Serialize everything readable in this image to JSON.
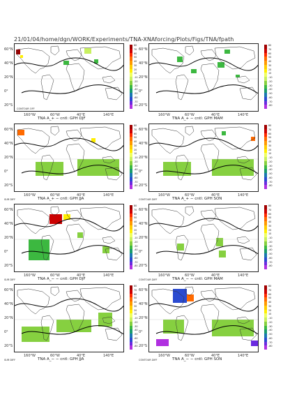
{
  "header": {
    "path": "21/01/04/home/dgn/WORK/Experiments/TNA-XNAforcing/Plots/Figs/TNA/fpath"
  },
  "axes": {
    "lat_labels": [
      "60°N",
      "40°N",
      "20°N",
      "0°",
      "20°S"
    ],
    "lon_labels": [
      "160°W",
      "60°W",
      "40°E",
      "140°E"
    ]
  },
  "colorbar": {
    "labels": [
      "80",
      "70",
      "60",
      "50",
      "40",
      "30",
      "20",
      "10",
      "-10",
      "-20",
      "-30",
      "-40",
      "-50",
      "-60",
      "-70",
      "-80"
    ],
    "colors": [
      "#a00000",
      "#cc0000",
      "#ff2a00",
      "#ff6a00",
      "#ff9a00",
      "#ffcc00",
      "#ffee00",
      "#f0ff60",
      "#c8f060",
      "#86d040",
      "#3cb840",
      "#1a9c6c",
      "#1a78b0",
      "#2a4ad0",
      "#6a2ae0",
      "#b030e0"
    ]
  },
  "panels": [
    {
      "id": "r1c1",
      "caption": "TNA A_+ − cntl: GPH DJF",
      "contour_label": "CONTOUR OFF",
      "corner_label": ""
    },
    {
      "id": "r1c2",
      "caption": "TNA A_+ − cntl: GPH MAM",
      "contour_label": "",
      "corner_label": ""
    },
    {
      "id": "r2c1",
      "caption": "TNA A_+ − cntl: GPH JJA",
      "contour_label": "",
      "corner_label": "SUR DIFF"
    },
    {
      "id": "r2c2",
      "caption": "TNA A_+ − cntl: GPH SON",
      "contour_label": "",
      "corner_label": "CONTOUR DIFF"
    },
    {
      "id": "r3c1",
      "caption": "TNA A_− − cntl: GPH DJF",
      "contour_label": "",
      "corner_label": "SUR DIFF"
    },
    {
      "id": "r3c2",
      "caption": "TNA A_− − cntl: GPH MAM",
      "contour_label": "",
      "corner_label": "CONTOUR DIFF"
    },
    {
      "id": "r4c1",
      "caption": "TNA A_− − cntl: GPH JJA",
      "contour_label": "",
      "corner_label": "SUR DIFF"
    },
    {
      "id": "r4c2",
      "caption": "TNA A_− − cntl: GPH SON",
      "contour_label": "",
      "corner_label": "CONTOUR DIFF"
    }
  ]
}
